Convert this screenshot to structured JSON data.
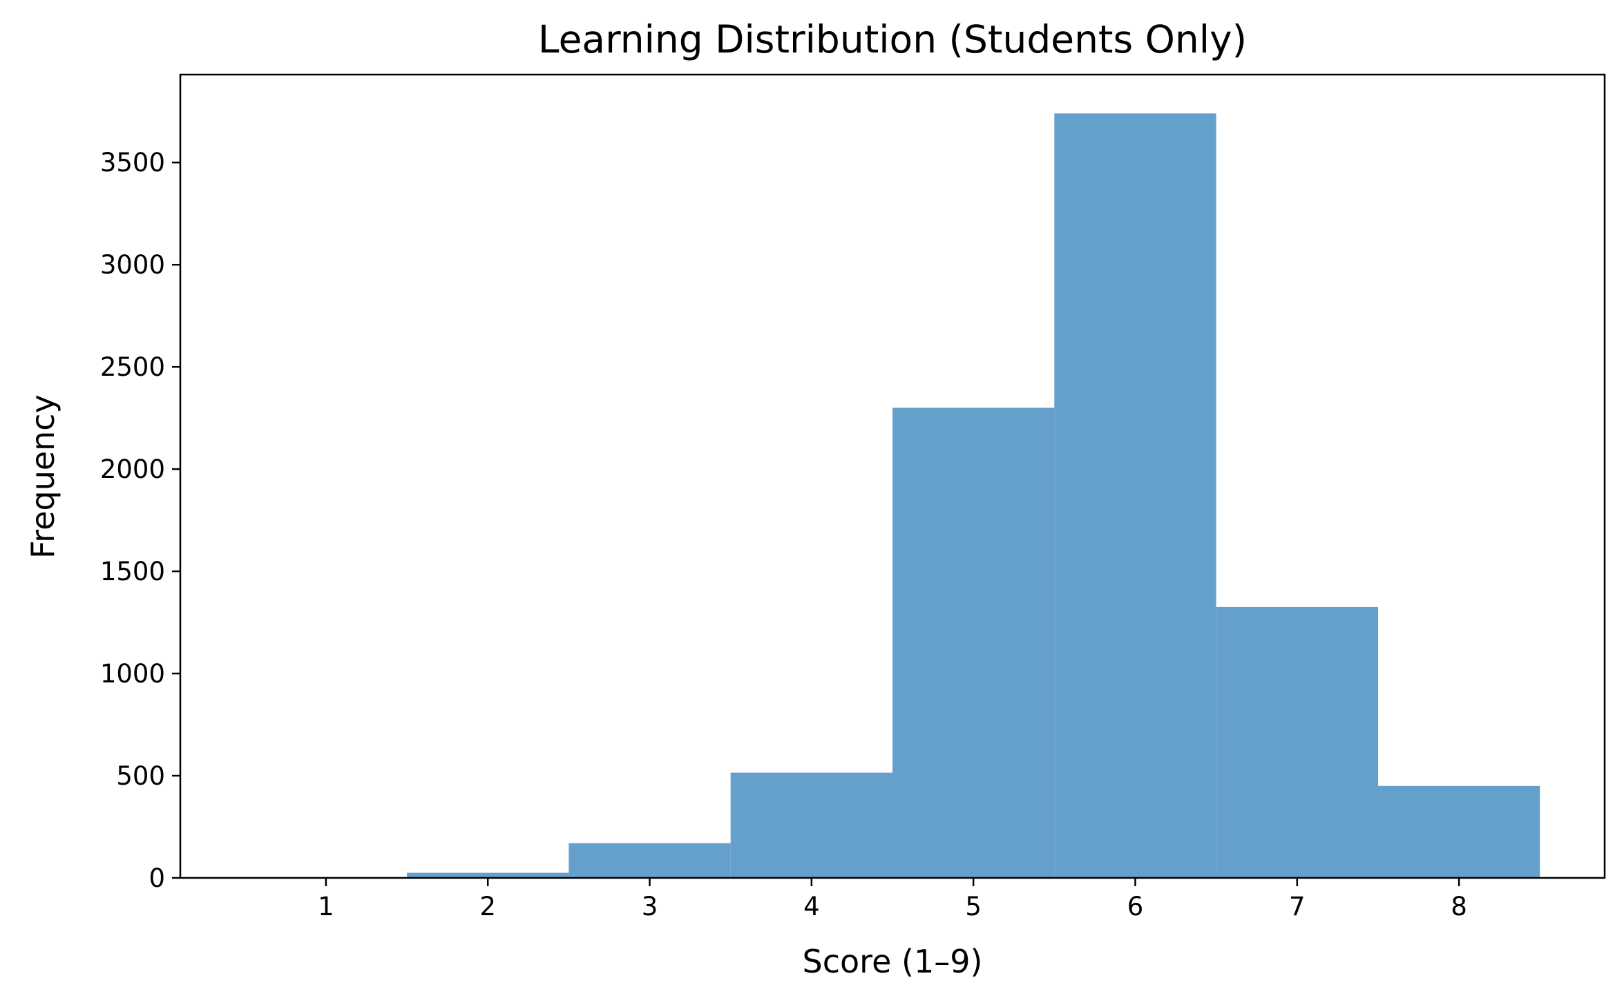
{
  "chart_data": {
    "type": "bar",
    "title": "Learning Distribution (Students Only)",
    "xlabel": "Score (1–9)",
    "ylabel": "Frequency",
    "bins": [
      {
        "x": 1,
        "value": 0
      },
      {
        "x": 2,
        "value": 25
      },
      {
        "x": 3,
        "value": 170
      },
      {
        "x": 4,
        "value": 515
      },
      {
        "x": 5,
        "value": 2300
      },
      {
        "x": 6,
        "value": 3740
      },
      {
        "x": 7,
        "value": 1325
      },
      {
        "x": 8,
        "value": 450
      }
    ],
    "xlim": [
      0.1,
      8.9
    ],
    "ylim": [
      0,
      3930
    ],
    "x_ticks": [
      "1",
      "2",
      "3",
      "4",
      "5",
      "6",
      "7",
      "8"
    ],
    "y_ticks": [
      "0",
      "500",
      "1000",
      "1500",
      "2000",
      "2500",
      "3000",
      "3500"
    ],
    "bar_color": "#64a0cb",
    "grid": false,
    "legend": "none"
  }
}
